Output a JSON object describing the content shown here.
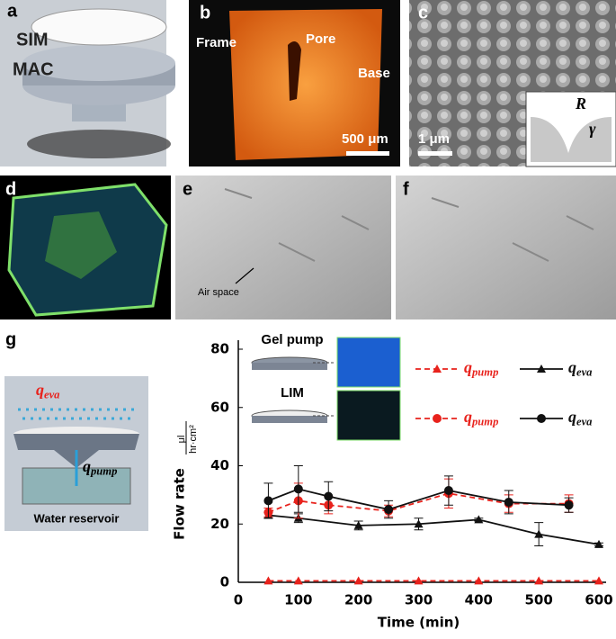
{
  "panels": {
    "a": {
      "label": "a",
      "top_layer": "SIM",
      "bottom_layer": "MAC"
    },
    "b": {
      "label": "b",
      "frame": "Frame",
      "pore": "Pore",
      "base": "Base",
      "scale": "500 μm"
    },
    "c": {
      "label": "c",
      "scale": "1 μm",
      "radius": "R",
      "angle": "γ"
    },
    "d": {
      "label": "d"
    },
    "e": {
      "label": "e",
      "annotation": "Air space"
    },
    "f": {
      "label": "f"
    },
    "g": {
      "label": "g",
      "evaporation": "q_eva",
      "pumping": "q_pump",
      "reservoir": "Water reservoir"
    }
  },
  "chart_data": {
    "type": "line",
    "x_label": "Time (min)",
    "y_label": "Flow rate",
    "y_unit_numerator": "μl",
    "y_unit_denominator": "hr·cm²",
    "xlim": [
      0,
      600
    ],
    "xticks": [
      0,
      100,
      200,
      300,
      400,
      500,
      600
    ],
    "ylim": [
      0,
      80
    ],
    "yticks": [
      0,
      20,
      40,
      60,
      80
    ],
    "legend_groups": [
      "Gel pump",
      "LIM"
    ],
    "series": [
      {
        "name": "q_pump",
        "group": 0,
        "color": "#e8221c",
        "dashed": true,
        "marker": "triangle",
        "x": [
          50,
          100,
          200,
          300,
          400,
          500,
          600
        ],
        "values": [
          0.5,
          0.5,
          0.5,
          0.5,
          0.5,
          0.5,
          0.5
        ]
      },
      {
        "name": "q_eva",
        "group": 0,
        "color": "#111111",
        "dashed": false,
        "marker": "triangle",
        "x": [
          50,
          100,
          200,
          300,
          400,
          500,
          600
        ],
        "values": [
          23,
          22,
          19.5,
          20,
          21.5,
          16.5,
          13
        ],
        "errors": [
          1,
          1.5,
          1.5,
          2,
          0.5,
          4,
          0.5
        ]
      },
      {
        "name": "q_pump",
        "group": 1,
        "color": "#e8221c",
        "dashed": true,
        "marker": "circle",
        "x": [
          50,
          100,
          150,
          250,
          350,
          450,
          550
        ],
        "values": [
          24,
          28,
          26.5,
          24.5,
          30.5,
          27,
          27
        ],
        "errors": [
          1.5,
          6,
          3,
          2,
          5,
          3,
          3
        ]
      },
      {
        "name": "q_eva",
        "group": 1,
        "color": "#111111",
        "dashed": false,
        "marker": "circle",
        "x": [
          50,
          100,
          150,
          250,
          350,
          450,
          550
        ],
        "values": [
          28,
          32,
          29.5,
          25,
          31.5,
          27.5,
          26.5
        ],
        "errors": [
          6,
          8,
          5,
          3,
          5,
          4,
          2.5
        ]
      }
    ]
  }
}
